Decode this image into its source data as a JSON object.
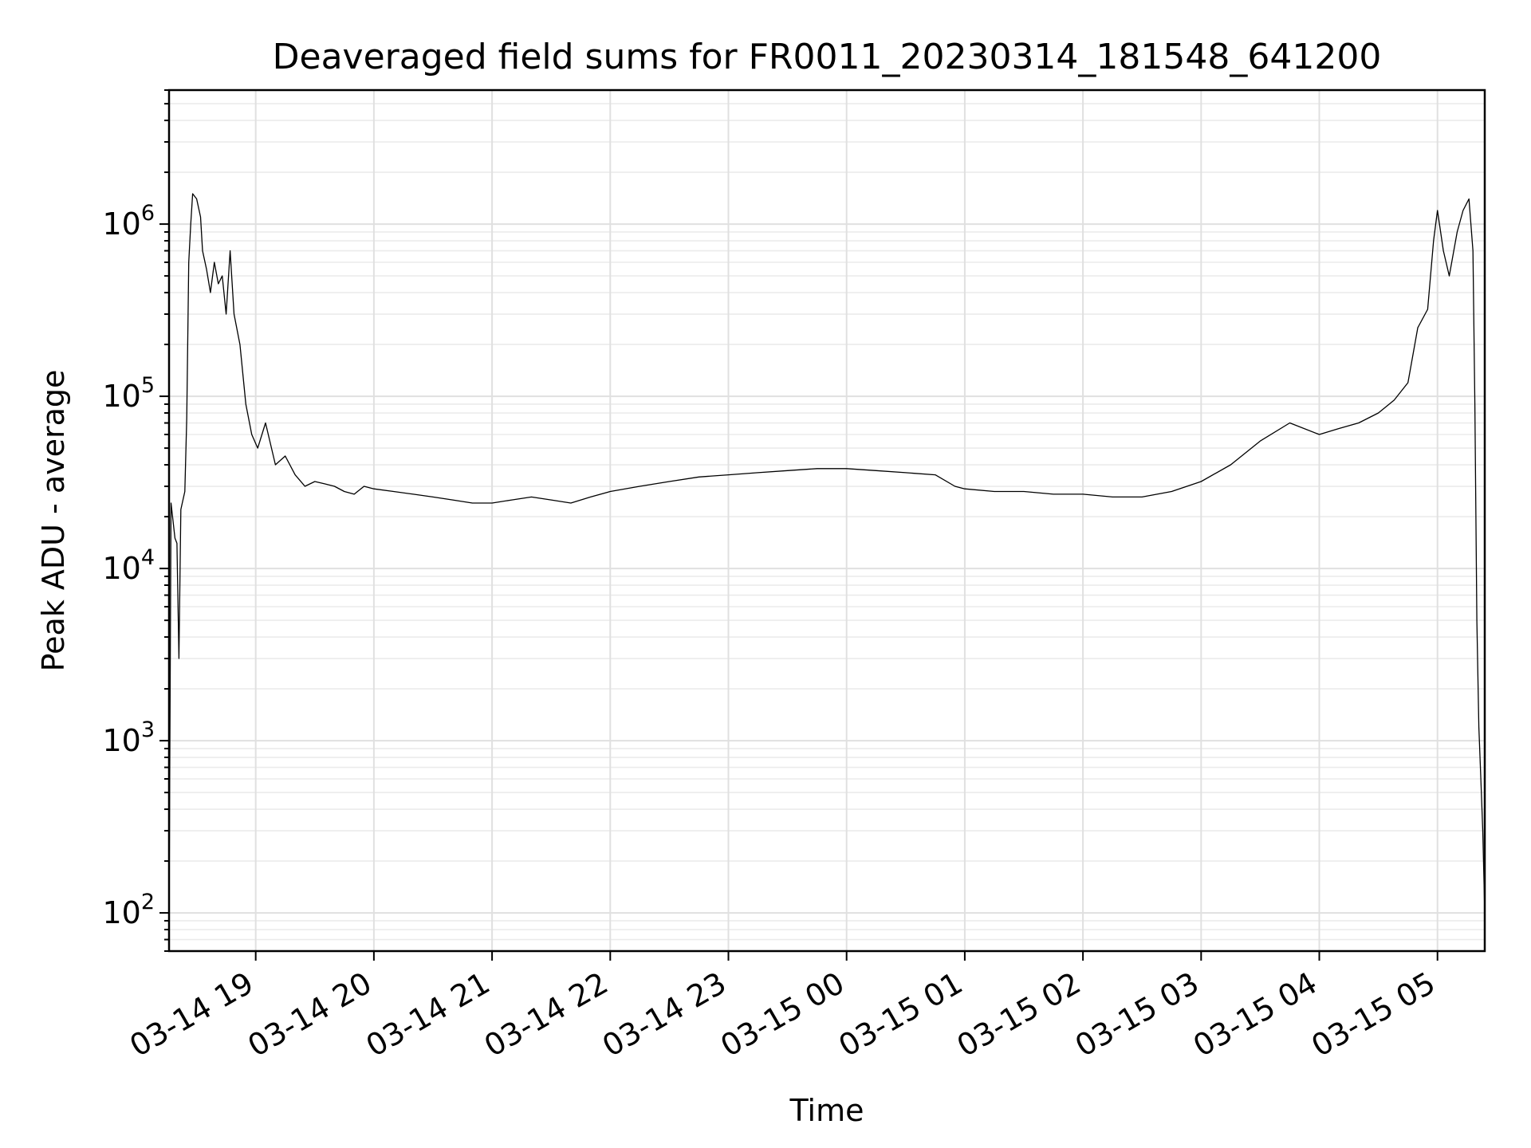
{
  "chart_data": {
    "type": "line",
    "title": "Deaveraged field sums for FR0011_20230314_181548_641200",
    "xlabel": "Time",
    "ylabel": "Peak ADU - average",
    "yscale": "log",
    "ylim": [
      60,
      6000000
    ],
    "xlim": [
      "03-14 18:16",
      "03-15 05:24"
    ],
    "grid": true,
    "x_ticks": [
      "03-14 19",
      "03-14 20",
      "03-14 21",
      "03-14 22",
      "03-14 23",
      "03-15 00",
      "03-15 01",
      "03-15 02",
      "03-15 03",
      "03-15 04",
      "03-15 05"
    ],
    "y_ticks": [
      {
        "value": 100,
        "base": "10",
        "exp": "2"
      },
      {
        "value": 1000,
        "base": "10",
        "exp": "3"
      },
      {
        "value": 10000,
        "base": "10",
        "exp": "4"
      },
      {
        "value": 100000,
        "base": "10",
        "exp": "5"
      },
      {
        "value": 1000000,
        "base": "10",
        "exp": "6"
      }
    ],
    "series": [
      {
        "color": "#000000",
        "x": [
          "03-14 18:16",
          "03-14 18:17",
          "03-14 18:19",
          "03-14 18:20",
          "03-14 18:21",
          "03-14 18:22",
          "03-14 18:24",
          "03-14 18:25",
          "03-14 18:26",
          "03-14 18:27",
          "03-14 18:28",
          "03-14 18:30",
          "03-14 18:32",
          "03-14 18:33",
          "03-14 18:35",
          "03-14 18:37",
          "03-14 18:39",
          "03-14 18:41",
          "03-14 18:43",
          "03-14 18:45",
          "03-14 18:47",
          "03-14 18:49",
          "03-14 18:52",
          "03-14 18:55",
          "03-14 18:58",
          "03-14 19:01",
          "03-14 19:05",
          "03-14 19:10",
          "03-14 19:15",
          "03-14 19:20",
          "03-14 19:25",
          "03-14 19:30",
          "03-14 19:35",
          "03-14 19:40",
          "03-14 19:45",
          "03-14 19:50",
          "03-14 19:55",
          "03-14 20:00",
          "03-14 20:10",
          "03-14 20:20",
          "03-14 20:30",
          "03-14 20:40",
          "03-14 20:50",
          "03-14 21:00",
          "03-14 21:10",
          "03-14 21:20",
          "03-14 21:30",
          "03-14 21:40",
          "03-14 21:50",
          "03-14 22:00",
          "03-14 22:15",
          "03-14 22:30",
          "03-14 22:45",
          "03-14 23:00",
          "03-14 23:15",
          "03-14 23:30",
          "03-14 23:45",
          "03-15 00:00",
          "03-15 00:15",
          "03-15 00:30",
          "03-15 00:45",
          "03-15 00:55",
          "03-15 01:00",
          "03-15 01:15",
          "03-15 01:30",
          "03-15 01:45",
          "03-15 02:00",
          "03-15 02:15",
          "03-15 02:30",
          "03-15 02:45",
          "03-15 03:00",
          "03-15 03:15",
          "03-15 03:30",
          "03-15 03:45",
          "03-15 04:00",
          "03-15 04:10",
          "03-15 04:20",
          "03-15 04:30",
          "03-15 04:38",
          "03-15 04:45",
          "03-15 04:50",
          "03-15 04:55",
          "03-15 04:58",
          "03-15 05:00",
          "03-15 05:03",
          "03-15 05:06",
          "03-15 05:10",
          "03-15 05:13",
          "03-15 05:16",
          "03-15 05:18",
          "03-15 05:19",
          "03-15 05:20",
          "03-15 05:21",
          "03-15 05:22",
          "03-15 05:23",
          "03-15 05:24"
        ],
        "y": [
          90,
          24000,
          15000,
          14000,
          3000,
          22000,
          28000,
          75000,
          600000,
          1000000,
          1500000,
          1400000,
          1100000,
          700000,
          550000,
          400000,
          600000,
          450000,
          500000,
          300000,
          700000,
          300000,
          200000,
          90000,
          60000,
          50000,
          70000,
          40000,
          45000,
          35000,
          30000,
          32000,
          31000,
          30000,
          28000,
          27000,
          30000,
          29000,
          28000,
          27000,
          26000,
          25000,
          24000,
          24000,
          25000,
          26000,
          25000,
          24000,
          26000,
          28000,
          30000,
          32000,
          34000,
          35000,
          36000,
          37000,
          38000,
          38000,
          37000,
          36000,
          35000,
          30000,
          29000,
          28000,
          28000,
          27000,
          27000,
          26000,
          26000,
          28000,
          32000,
          40000,
          55000,
          70000,
          60000,
          65000,
          70000,
          80000,
          95000,
          120000,
          250000,
          320000,
          800000,
          1200000,
          700000,
          500000,
          900000,
          1200000,
          1400000,
          700000,
          90000,
          5000,
          1200,
          600,
          300,
          100
        ]
      }
    ]
  }
}
